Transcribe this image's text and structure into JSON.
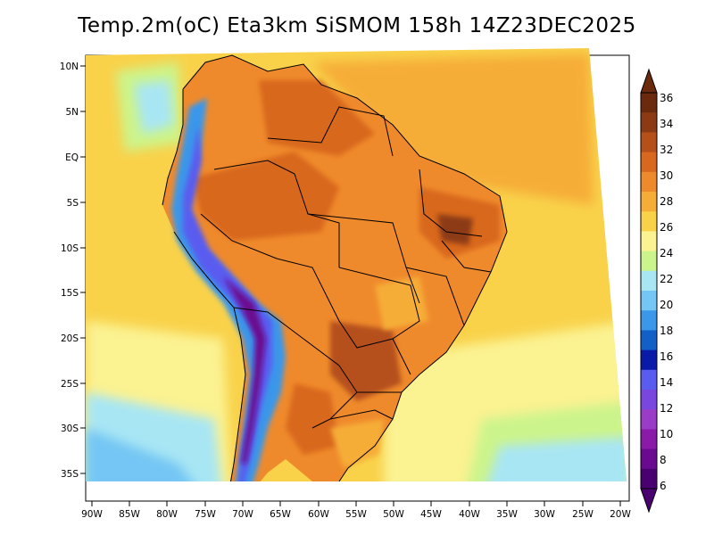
{
  "title": "Temp.2m(oC) Eta3km SiSMOM 158h 14Z23DEC2025",
  "map": {
    "variable": "2 m air temperature",
    "units": "oC",
    "region": "South America",
    "lat_labels": [
      "10N",
      "5N",
      "EQ",
      "5S",
      "10S",
      "15S",
      "20S",
      "25S",
      "30S",
      "35S"
    ],
    "lon_labels": [
      "90W",
      "85W",
      "80W",
      "75W",
      "70W",
      "65W",
      "60W",
      "55W",
      "50W",
      "45W",
      "40W",
      "35W",
      "30W",
      "25W",
      "20W"
    ]
  },
  "colorbar": {
    "labels": [
      "36",
      "34",
      "32",
      "30",
      "28",
      "26",
      "24",
      "22",
      "20",
      "18",
      "16",
      "14",
      "12",
      "10",
      "8",
      "6"
    ],
    "colors": [
      "#6b2a0e",
      "#8c3a14",
      "#b5501a",
      "#d8681e",
      "#ef8a2c",
      "#f6ad38",
      "#f9d24a",
      "#fbf291",
      "#ccf48c",
      "#a8e6f4",
      "#74c6f4",
      "#3b97ea",
      "#1060c8",
      "#0a1aa8",
      "#5a5cf0",
      "#7a46e0",
      "#9a3cc8",
      "#8a1aa8",
      "#6a0a90",
      "#4b0072"
    ]
  }
}
